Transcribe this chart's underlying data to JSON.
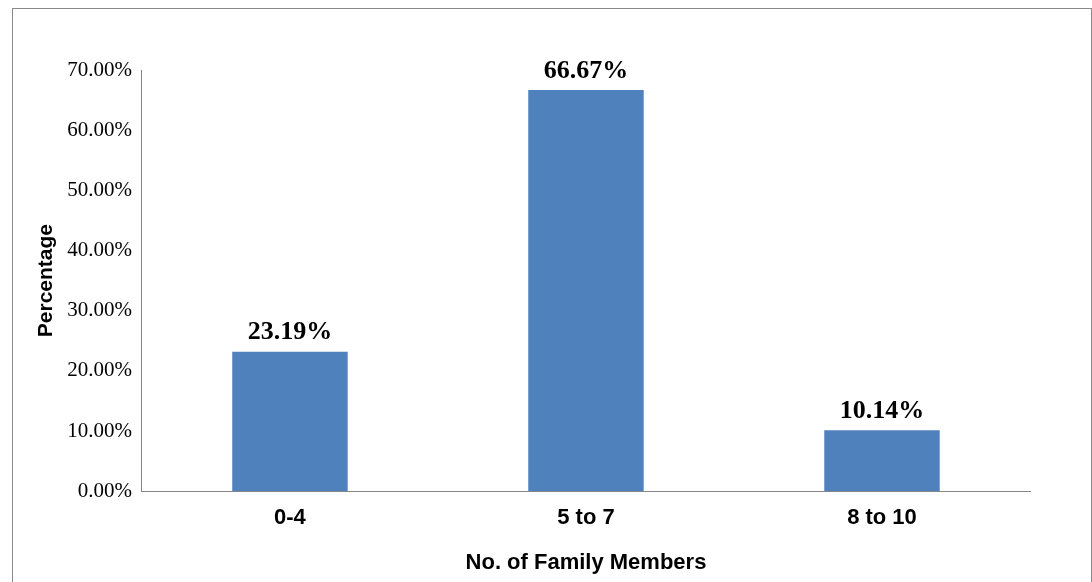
{
  "chart_data": {
    "type": "bar",
    "xlabel": "No. of Family Members",
    "ylabel": "Percentage",
    "categories": [
      "0-4",
      "5 to 7",
      "8 to 10"
    ],
    "values": [
      23.19,
      66.67,
      10.14
    ],
    "value_labels": [
      "23.19%",
      "66.67%",
      "10.14%"
    ],
    "color": "#4f81bd",
    "ylim": [
      0,
      70
    ],
    "yticks": [
      {
        "value": 0,
        "label": "0.00%"
      },
      {
        "value": 10,
        "label": "10.00%"
      },
      {
        "value": 20,
        "label": "20.00%"
      },
      {
        "value": 30,
        "label": "30.00%"
      },
      {
        "value": 40,
        "label": "40.00%"
      },
      {
        "value": 50,
        "label": "50.00%"
      },
      {
        "value": 60,
        "label": "60.00%"
      },
      {
        "value": 70,
        "label": "70.00%"
      }
    ],
    "grid": false,
    "legend": false
  }
}
